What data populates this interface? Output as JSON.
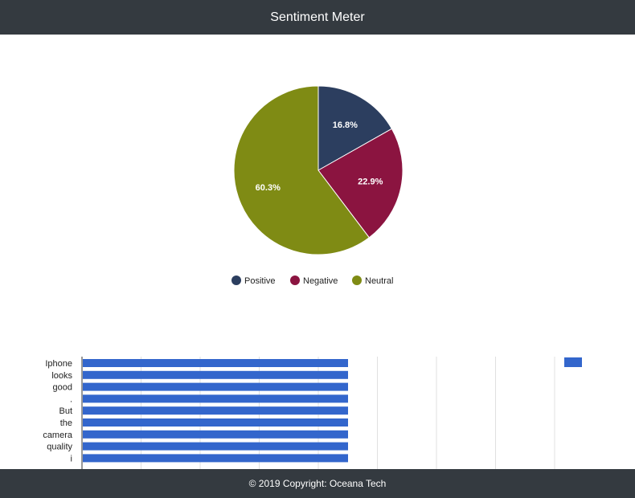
{
  "header": {
    "title": "Sentiment Meter"
  },
  "footer": {
    "text": "© 2019 Copyright: Oceana Tech"
  },
  "chart_data": [
    {
      "type": "pie",
      "slices": [
        {
          "label": "Positive",
          "value": 16.8,
          "display": "16.8%",
          "color": "#2c3e5f"
        },
        {
          "label": "Negative",
          "value": 22.9,
          "display": "22.9%",
          "color": "#8b1440"
        },
        {
          "label": "Neutral",
          "value": 60.3,
          "display": "60.3%",
          "color": "#7f8b14"
        }
      ],
      "legend_position": "bottom"
    },
    {
      "type": "bar",
      "orientation": "horizontal",
      "categories": [
        "Iphone",
        "looks",
        "good",
        ".",
        "But",
        "the",
        "camera",
        "quality",
        "i"
      ],
      "values": [
        0.4,
        0.4,
        0.4,
        0.4,
        0.4,
        0.4,
        0.4,
        0.4,
        0.4
      ],
      "xlim": [
        0,
        0.8
      ],
      "grid": true,
      "color": "#3366cc",
      "legend_position": "top-right"
    }
  ]
}
